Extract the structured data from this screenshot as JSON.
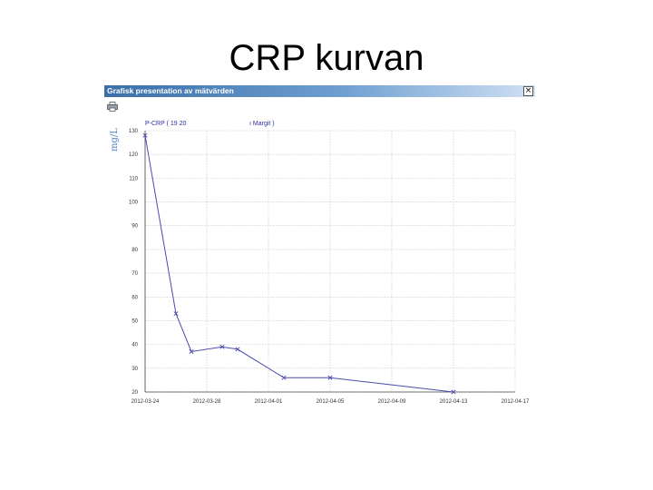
{
  "slide": {
    "title": "CRP kurvan"
  },
  "window": {
    "title": "Grafisk presentation av mätvärden",
    "close_label": "×",
    "print_icon": "printer-icon"
  },
  "chart_data": {
    "type": "line",
    "title_left": "P-CRP ( 19 20",
    "title_right": "ı Margit )",
    "ylabel": "mg/L",
    "ylim": [
      20,
      130
    ],
    "yticks": [
      20,
      30,
      40,
      50,
      60,
      70,
      80,
      90,
      100,
      110,
      120,
      130
    ],
    "xlim": [
      "2012-03-24",
      "2012-04-17"
    ],
    "xticks": [
      "2012-03-24",
      "2012-03-28",
      "2012-04-01",
      "2012-04-05",
      "2012-04-09",
      "2012-04-13",
      "2012-04-17"
    ],
    "grid": true,
    "series": [
      {
        "color": "#4a4ab0",
        "marker": "x",
        "points": [
          {
            "x": "2012-03-24",
            "y": 128
          },
          {
            "x": "2012-03-26",
            "y": 53
          },
          {
            "x": "2012-03-27",
            "y": 37
          },
          {
            "x": "2012-03-29",
            "y": 39
          },
          {
            "x": "2012-03-30",
            "y": 38
          },
          {
            "x": "2012-04-02",
            "y": 26
          },
          {
            "x": "2012-04-05",
            "y": 26
          },
          {
            "x": "2012-04-13",
            "y": 20
          }
        ]
      }
    ]
  }
}
